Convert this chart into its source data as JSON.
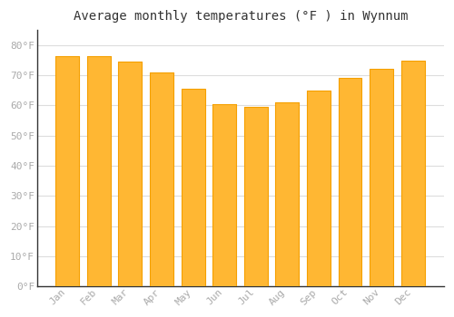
{
  "title": "Average monthly temperatures (°F ) in Wynnum",
  "months": [
    "Jan",
    "Feb",
    "Mar",
    "Apr",
    "May",
    "Jun",
    "Jul",
    "Aug",
    "Sep",
    "Oct",
    "Nov",
    "Dec"
  ],
  "values": [
    76.5,
    76.5,
    74.5,
    71.0,
    65.5,
    60.5,
    59.5,
    61.0,
    65.0,
    69.0,
    72.0,
    75.0
  ],
  "bar_color_center": "#FFB733",
  "bar_color_edge": "#F5A000",
  "background_color": "#FFFFFF",
  "grid_color": "#DDDDDD",
  "yticks": [
    0,
    10,
    20,
    30,
    40,
    50,
    60,
    70,
    80
  ],
  "ylim": [
    0,
    85
  ],
  "title_fontsize": 10,
  "tick_fontsize": 8,
  "tick_color": "#AAAAAA",
  "font_family": "monospace",
  "bar_width": 0.75
}
